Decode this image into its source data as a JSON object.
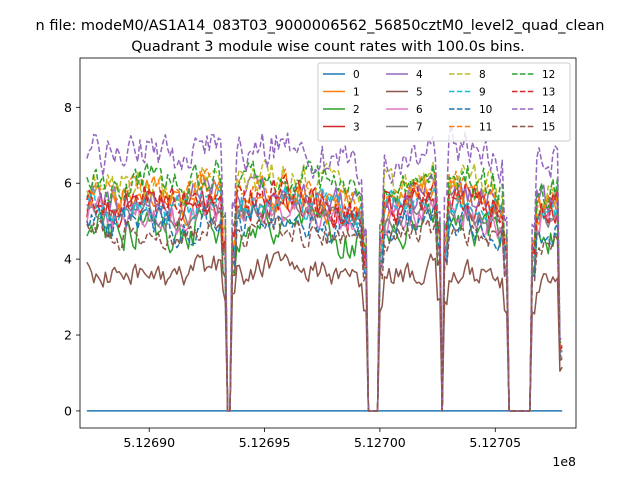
{
  "chart_data": {
    "type": "line",
    "suptitle": "n file: modeM0/AS1A14_083T03_9000006562_56850cztM0_level2_quad_clean",
    "title": "Quadrant 3 module wise count rates with 100.0s bins.",
    "xlabel": "",
    "ylabel": "",
    "x_offset_label": "1e8",
    "xlim": [
      512687.0,
      512708.5
    ],
    "ylim": [
      -0.45,
      9.3
    ],
    "x_ticks": [
      512690,
      512695,
      512700,
      512705
    ],
    "x_tick_labels": [
      "5.12690",
      "5.12695",
      "5.12700",
      "5.12705"
    ],
    "y_ticks": [
      0,
      2,
      4,
      6,
      8
    ],
    "y_tick_labels": [
      "0",
      "2",
      "4",
      "6",
      "8"
    ],
    "x_start": 512687.3,
    "x_end": 512707.9,
    "bin_step": 0.1,
    "gaps": [
      [
        512693.35,
        512693.6
      ],
      [
        512699.4,
        512699.95
      ],
      [
        512702.65,
        512702.75
      ],
      [
        512705.5,
        512706.6
      ]
    ],
    "legend": {
      "position": "upper right",
      "columns": 4
    },
    "series": [
      {
        "name": "0",
        "color": "#1f77b4",
        "style": "solid",
        "base": 0.0,
        "noise": 0.0
      },
      {
        "name": "1",
        "color": "#ff7f0e",
        "style": "solid",
        "base": 5.5,
        "noise": 0.35
      },
      {
        "name": "2",
        "color": "#2ca02c",
        "style": "solid",
        "base": 4.7,
        "noise": 0.4
      },
      {
        "name": "3",
        "color": "#d62728",
        "style": "solid",
        "base": 5.3,
        "noise": 0.35
      },
      {
        "name": "4",
        "color": "#9467bd",
        "style": "solid",
        "base": 5.6,
        "noise": 0.35
      },
      {
        "name": "5",
        "color": "#8c564b",
        "style": "solid",
        "base": 3.6,
        "noise": 0.3
      },
      {
        "name": "6",
        "color": "#e377c2",
        "style": "solid",
        "base": 5.1,
        "noise": 0.35
      },
      {
        "name": "7",
        "color": "#7f7f7f",
        "style": "solid",
        "base": 5.2,
        "noise": 0.3
      },
      {
        "name": "8",
        "color": "#bcbd22",
        "style": "dashed",
        "base": 5.9,
        "noise": 0.4
      },
      {
        "name": "9",
        "color": "#17becf",
        "style": "dashed",
        "base": 5.4,
        "noise": 0.35
      },
      {
        "name": "10",
        "color": "#1f77b4",
        "style": "dashed",
        "base": 4.9,
        "noise": 0.35
      },
      {
        "name": "11",
        "color": "#ff7f0e",
        "style": "dashed",
        "base": 5.7,
        "noise": 0.35
      },
      {
        "name": "12",
        "color": "#2ca02c",
        "style": "dashed",
        "base": 6.0,
        "noise": 0.4
      },
      {
        "name": "13",
        "color": "#d62728",
        "style": "dashed",
        "base": 5.5,
        "noise": 0.35
      },
      {
        "name": "14",
        "color": "#9467bd",
        "style": "dashed",
        "base": 6.7,
        "noise": 0.45
      },
      {
        "name": "15",
        "color": "#8c564b",
        "style": "dashed",
        "base": 4.6,
        "noise": 0.3
      }
    ]
  }
}
